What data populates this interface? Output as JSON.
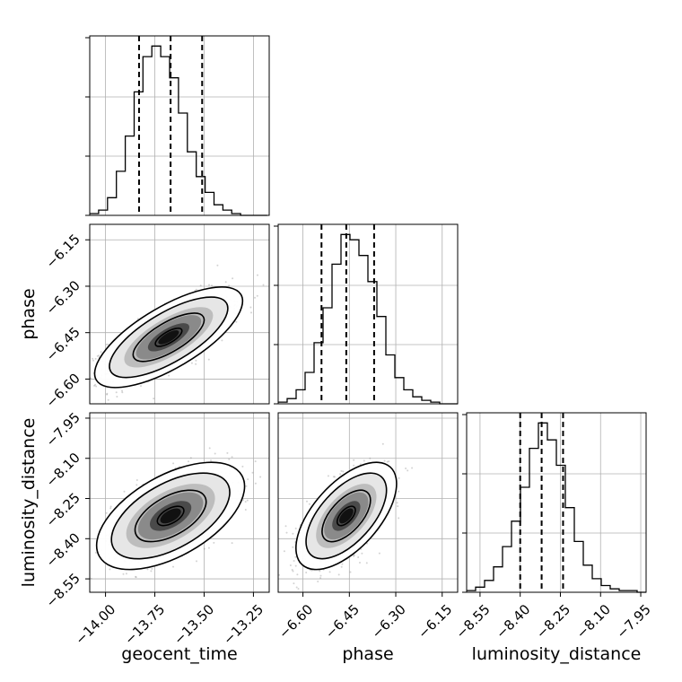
{
  "chart_data": {
    "type": "corner",
    "parameters": [
      "geocent_time",
      "phase",
      "luminosity_distance"
    ],
    "axes": {
      "geocent_time": {
        "label": "geocent_time",
        "range": [
          -14.08,
          -13.17
        ],
        "ticks": [
          -14.0,
          -13.75,
          -13.5,
          -13.25
        ],
        "tick_labels": [
          "−14.00",
          "−13.75",
          "−13.50",
          "−13.25"
        ]
      },
      "phase": {
        "label": "phase",
        "range": [
          -6.68,
          -6.1
        ],
        "ticks": [
          -6.6,
          -6.45,
          -6.3,
          -6.15
        ],
        "tick_labels": [
          "−6.60",
          "−6.45",
          "−6.30",
          "−6.15"
        ]
      },
      "luminosity_distance": {
        "label": "luminosity_distance",
        "range": [
          -8.6,
          -7.93
        ],
        "ticks": [
          -8.55,
          -8.4,
          -8.25,
          -8.1,
          -7.95
        ],
        "tick_labels": [
          "−8.55",
          "−8.40",
          "−8.25",
          "−8.10",
          "−7.95"
        ]
      }
    },
    "histograms": [
      {
        "parameter": "geocent_time",
        "bin_edges": [
          -14.08,
          -14.035,
          -13.99,
          -13.945,
          -13.9,
          -13.855,
          -13.81,
          -13.765,
          -13.72,
          -13.675,
          -13.63,
          -13.585,
          -13.54,
          -13.495,
          -13.45,
          -13.405,
          -13.36,
          -13.315,
          -13.27,
          -13.225,
          -13.18
        ],
        "counts": [
          1,
          3,
          10,
          25,
          45,
          70,
          90,
          96,
          90,
          78,
          58,
          36,
          22,
          13,
          6,
          3,
          1,
          0,
          0,
          0
        ],
        "quantiles": [
          -13.83,
          -13.67,
          -13.51
        ]
      },
      {
        "parameter": "phase",
        "bin_edges": [
          -6.68,
          -6.651,
          -6.622,
          -6.593,
          -6.564,
          -6.535,
          -6.506,
          -6.477,
          -6.448,
          -6.419,
          -6.39,
          -6.361,
          -6.332,
          -6.303,
          -6.274,
          -6.245,
          -6.216,
          -6.187,
          -6.158,
          -6.129,
          -6.1
        ],
        "counts": [
          1,
          3,
          8,
          18,
          35,
          55,
          80,
          97,
          94,
          85,
          70,
          50,
          28,
          15,
          8,
          4,
          2,
          1,
          0,
          0
        ],
        "quantiles": [
          -6.54,
          -6.46,
          -6.37
        ]
      },
      {
        "parameter": "luminosity_distance",
        "bin_edges": [
          -8.6,
          -8.5665,
          -8.533,
          -8.4995,
          -8.466,
          -8.4325,
          -8.399,
          -8.3655,
          -8.332,
          -8.2985,
          -8.265,
          -8.2315,
          -8.198,
          -8.1645,
          -8.131,
          -8.0975,
          -8.064,
          -8.0305,
          -7.997,
          -7.9635,
          -7.93
        ],
        "counts": [
          1,
          3,
          7,
          15,
          27,
          42,
          62,
          85,
          100,
          90,
          75,
          50,
          30,
          16,
          8,
          4,
          2,
          1,
          1,
          0
        ],
        "quantiles": [
          -8.4,
          -8.32,
          -8.24
        ]
      }
    ],
    "scatter_2d": [
      {
        "x": "geocent_time",
        "y": "phase",
        "center": [
          -13.68,
          -6.465
        ],
        "sd": [
          0.15,
          0.065
        ],
        "correlation": 0.72
      },
      {
        "x": "geocent_time",
        "y": "luminosity_distance",
        "center": [
          -13.67,
          -8.315
        ],
        "sd": [
          0.15,
          0.08
        ],
        "correlation": 0.55
      },
      {
        "x": "phase",
        "y": "luminosity_distance",
        "center": [
          -6.46,
          -8.315
        ],
        "sd": [
          0.065,
          0.08
        ],
        "correlation": 0.6
      }
    ],
    "grid": true,
    "colors": {
      "points": "#808080",
      "lines": "#000000",
      "grid": "#b0b0b0",
      "background": "#ffffff"
    }
  }
}
